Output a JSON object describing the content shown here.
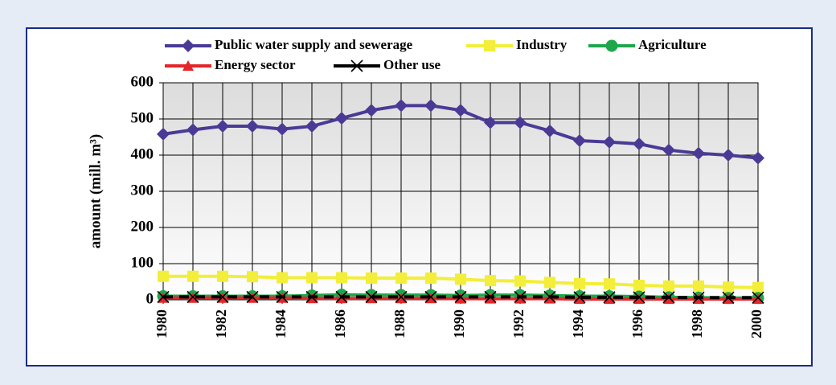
{
  "chart_data": {
    "type": "line",
    "ylabel": "amount (mill. m³)",
    "x": [
      1980,
      1981,
      1982,
      1983,
      1984,
      1985,
      1986,
      1987,
      1988,
      1989,
      1990,
      1991,
      1992,
      1993,
      1994,
      1995,
      1996,
      1997,
      1998,
      1999,
      2000
    ],
    "xlim": [
      1980,
      2000
    ],
    "xticks": [
      1980,
      1982,
      1984,
      1986,
      1988,
      1990,
      1992,
      1994,
      1996,
      1998,
      2000
    ],
    "ylim": [
      0,
      600
    ],
    "yticks": [
      0,
      100,
      200,
      300,
      400,
      500,
      600
    ],
    "grid": true,
    "series": [
      {
        "name": "Public water supply and sewerage",
        "color": "#4b3a95",
        "marker": "diamond",
        "values": [
          458,
          470,
          480,
          480,
          472,
          480,
          502,
          524,
          537,
          537,
          524,
          490,
          490,
          467,
          440,
          436,
          431,
          414,
          405,
          400,
          392
        ]
      },
      {
        "name": "Industry",
        "color": "#f2ee3a",
        "marker": "square",
        "values": [
          65,
          65,
          65,
          64,
          61,
          61,
          61,
          60,
          60,
          60,
          57,
          53,
          52,
          48,
          45,
          44,
          40,
          38,
          38,
          35,
          34
        ]
      },
      {
        "name": "Agriculture",
        "color": "#1ea64b",
        "marker": "circle",
        "values": [
          10,
          10,
          10,
          10,
          10,
          12,
          14,
          13,
          13,
          13,
          12,
          13,
          13,
          12,
          10,
          10,
          9,
          7,
          6,
          5,
          5
        ]
      },
      {
        "name": "Energy sector",
        "color": "#e4262a",
        "marker": "triangle",
        "values": [
          5,
          5,
          5,
          5,
          5,
          4,
          4,
          4,
          4,
          4,
          3,
          3,
          3,
          3,
          2,
          2,
          2,
          2,
          2,
          2,
          2
        ]
      },
      {
        "name": "Other use",
        "color": "#000000",
        "marker": "x",
        "values": [
          8,
          8,
          8,
          8,
          8,
          8,
          8,
          8,
          8,
          8,
          8,
          8,
          8,
          8,
          7,
          7,
          7,
          7,
          6,
          6,
          6
        ]
      }
    ]
  }
}
